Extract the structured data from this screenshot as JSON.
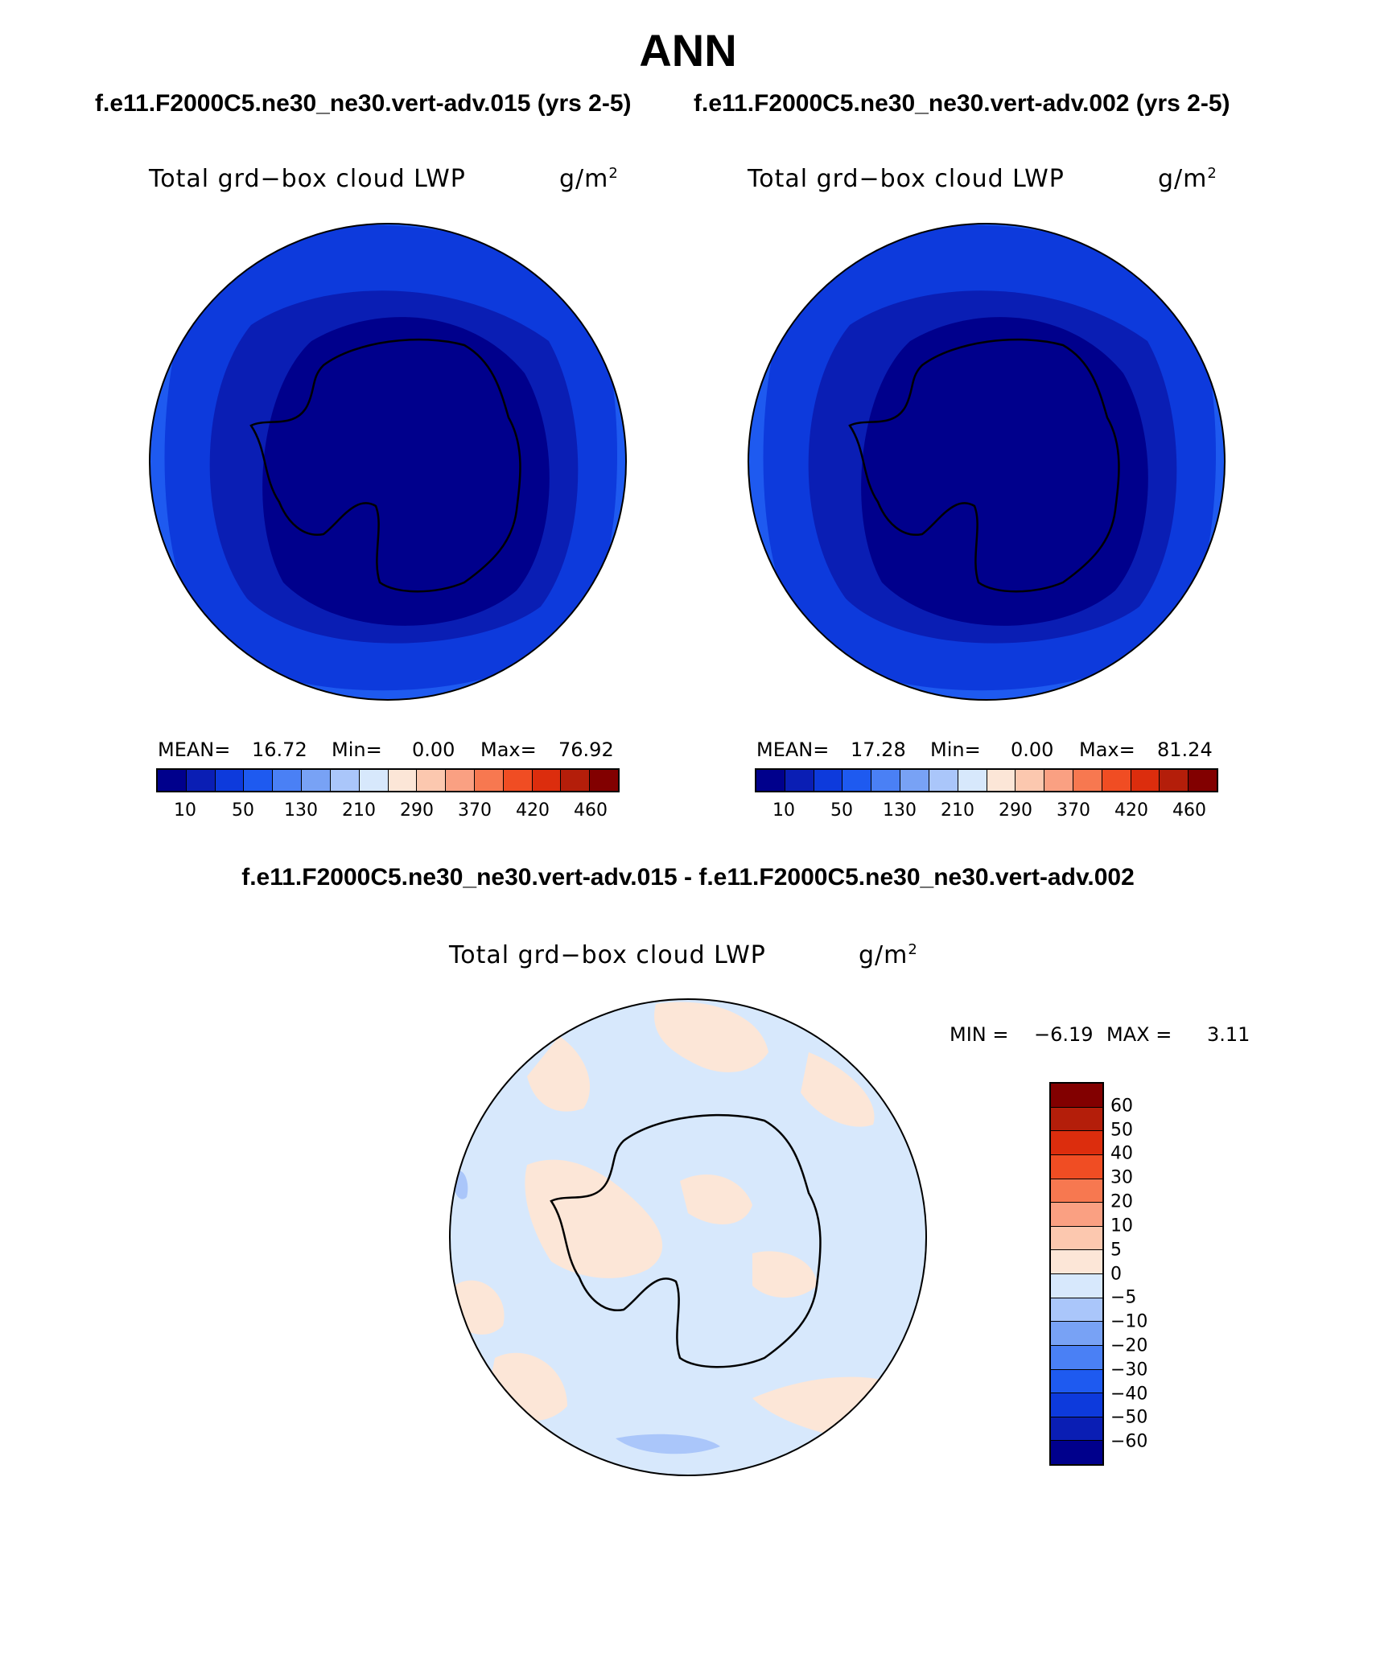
{
  "title": "ANN",
  "case_left": "f.e11.F2000C5.ne30_ne30.vert-adv.015 (yrs 2-5)",
  "case_right": "f.e11.F2000C5.ne30_ne30.vert-adv.002 (yrs 2-5)",
  "diff_title": "f.e11.F2000C5.ne30_ne30.vert-adv.015 - f.e11.F2000C5.ne30_ne30.vert-adv.002",
  "chart_data": [
    {
      "type": "heatmap",
      "projection": "polar-stereographic-south",
      "variable": "Total grd−box cloud LWP",
      "units_base": "g/m",
      "units_exp": "2",
      "mean_label": "MEAN=",
      "mean": "16.72",
      "min_label": "Min=",
      "min": "0.00",
      "max_label": "Max=",
      "max": "76.92",
      "colorbar_ticks": [
        "10",
        "50",
        "130",
        "210",
        "290",
        "370",
        "420",
        "460"
      ],
      "colorbar_colors": [
        "#00008C",
        "#0A1EB4",
        "#0D3ADC",
        "#1E5AF0",
        "#4A80F5",
        "#78A2F5",
        "#AAC6FA",
        "#D7E8FC",
        "#FCE6D7",
        "#FCC8AF",
        "#FAA082",
        "#F77850",
        "#F04D23",
        "#DC2D0D",
        "#B41E0A",
        "#820000"
      ]
    },
    {
      "type": "heatmap",
      "projection": "polar-stereographic-south",
      "variable": "Total grd−box cloud LWP",
      "units_base": "g/m",
      "units_exp": "2",
      "mean_label": "MEAN=",
      "mean": "17.28",
      "min_label": "Min=",
      "min": "0.00",
      "max_label": "Max=",
      "max": "81.24",
      "colorbar_ticks": [
        "10",
        "50",
        "130",
        "210",
        "290",
        "370",
        "420",
        "460"
      ],
      "colorbar_colors": [
        "#00008C",
        "#0A1EB4",
        "#0D3ADC",
        "#1E5AF0",
        "#4A80F5",
        "#78A2F5",
        "#AAC6FA",
        "#D7E8FC",
        "#FCE6D7",
        "#FCC8AF",
        "#FAA082",
        "#F77850",
        "#F04D23",
        "#DC2D0D",
        "#B41E0A",
        "#820000"
      ]
    },
    {
      "type": "heatmap",
      "projection": "polar-stereographic-south",
      "variable": "Total grd−box cloud LWP",
      "units_base": "g/m",
      "units_exp": "2",
      "min_label": "MIN =",
      "min": "−6.19",
      "max_label": "MAX =",
      "max": "3.11",
      "colorbar_ticks": [
        "60",
        "50",
        "40",
        "30",
        "20",
        "10",
        "5",
        "0",
        "−5",
        "−10",
        "−20",
        "−30",
        "−40",
        "−50",
        "−60"
      ],
      "colorbar_colors": [
        "#820000",
        "#B41E0A",
        "#DC2D0D",
        "#F04D23",
        "#F77850",
        "#FAA082",
        "#FCC8AF",
        "#FCE6D7",
        "#D7E8FC",
        "#AAC6FA",
        "#78A2F5",
        "#4A80F5",
        "#1E5AF0",
        "#0D3ADC",
        "#0A1EB4",
        "#00008C"
      ]
    }
  ]
}
